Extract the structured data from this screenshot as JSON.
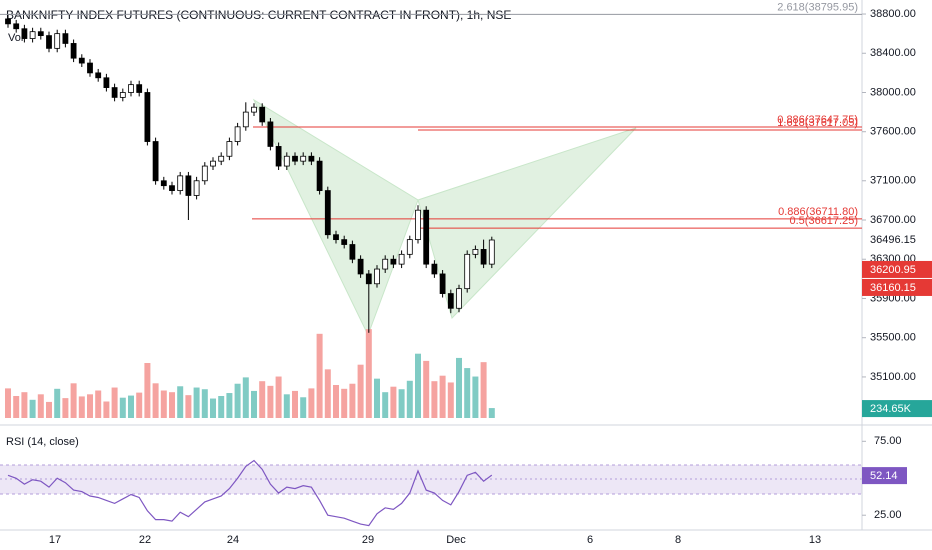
{
  "chart_data": {
    "type": "candlestick",
    "title": "BANKNIFTY INDEX FUTURES (CONTINUOUS: CURRENT CONTRACT IN FRONT), 1h, NSE",
    "volume_title": "Vol",
    "rsi_title": "RSI (14, close)",
    "x_labels": [
      "17",
      "22",
      "24",
      "29",
      "Dec",
      "6",
      "8",
      "13"
    ],
    "ylim": [
      34610,
      38943
    ],
    "yticks": [
      {
        "value": 38800,
        "label": "38800.00"
      },
      {
        "value": 38400,
        "label": "38400.00"
      },
      {
        "value": 38000,
        "label": "38000.00"
      },
      {
        "value": 37600,
        "label": "37600.00"
      },
      {
        "value": 37100,
        "label": "37100.00"
      },
      {
        "value": 36700,
        "label": "36700.00"
      },
      {
        "value": 36300,
        "label": "36300.00"
      },
      {
        "value": 35900,
        "label": "35900.00"
      },
      {
        "value": 35500,
        "label": "35500.00"
      },
      {
        "value": 35100,
        "label": "35100.00"
      }
    ],
    "open": [
      38750,
      38700,
      38650,
      38550,
      38620,
      38580,
      38450,
      38600,
      38500,
      38350,
      38300,
      38200,
      38150,
      38050,
      37950,
      38000,
      38080,
      38000,
      37500,
      37100,
      37050,
      37000,
      37150,
      36950,
      37100,
      37250,
      37300,
      37350,
      37500,
      37650,
      37800,
      37850,
      37700,
      37450,
      37250,
      37350,
      37300,
      37350,
      37300,
      37000,
      36550,
      36500,
      36450,
      36300,
      36150,
      36050,
      36200,
      36300,
      36250,
      36350,
      36500,
      36800,
      36250,
      36150,
      35950,
      35800,
      36000,
      36350,
      36400,
      36250
    ],
    "high": [
      38790,
      38740,
      38690,
      38660,
      38660,
      38620,
      38640,
      38640,
      38540,
      38390,
      38340,
      38240,
      38190,
      38090,
      38040,
      38120,
      38120,
      38040,
      37540,
      37140,
      37090,
      37190,
      37190,
      37140,
      37290,
      37340,
      37390,
      37540,
      37690,
      37900,
      37890,
      37890,
      37740,
      37490,
      37390,
      37390,
      37390,
      37390,
      37340,
      37040,
      36590,
      36540,
      36490,
      36340,
      36190,
      36240,
      36340,
      36340,
      36390,
      36540,
      36850,
      36840,
      36290,
      36190,
      35990,
      36040,
      36390,
      36440,
      36500,
      36530
    ],
    "low": [
      38660,
      38610,
      38510,
      38510,
      38540,
      38410,
      38410,
      38460,
      38310,
      38260,
      38160,
      38110,
      38010,
      37910,
      37910,
      37960,
      37960,
      37460,
      37060,
      37010,
      36960,
      36960,
      36700,
      36910,
      37060,
      37210,
      37260,
      37310,
      37460,
      37610,
      37760,
      37660,
      37410,
      37210,
      37210,
      37260,
      37260,
      37260,
      36960,
      36510,
      36460,
      36410,
      36260,
      36110,
      35550,
      36010,
      36160,
      36210,
      36210,
      36310,
      36460,
      36210,
      36110,
      35910,
      35750,
      35760,
      35960,
      36310,
      36210,
      36210
    ],
    "close": [
      38700,
      38650,
      38550,
      38620,
      38580,
      38450,
      38600,
      38500,
      38350,
      38300,
      38200,
      38150,
      38050,
      37950,
      38000,
      38080,
      38000,
      37500,
      37100,
      37050,
      37000,
      37150,
      36950,
      37100,
      37250,
      37300,
      37350,
      37500,
      37650,
      37800,
      37850,
      37700,
      37450,
      37250,
      37350,
      37300,
      37350,
      37300,
      37000,
      36550,
      36500,
      36450,
      36300,
      36150,
      36050,
      36200,
      36300,
      36250,
      36350,
      36500,
      36800,
      36250,
      36150,
      35950,
      35800,
      36000,
      36350,
      36400,
      36250,
      36496.15
    ],
    "last_price_label": "36496.15",
    "price_boxes": [
      {
        "value": 36200.95,
        "label": "36200.95"
      },
      {
        "value": 36160.15,
        "label": "36160.15"
      }
    ],
    "levels": [
      {
        "label": "2.618(38795.95)",
        "value": 38795.95,
        "color": "#9598a1"
      },
      {
        "label": "0.886(37647.75)",
        "value": 37647.75,
        "color": "#e53935"
      },
      {
        "label": "1.618(37617.05)",
        "value": 37617.05,
        "color": "#e53935"
      },
      {
        "label": "0.886(36711.80)",
        "value": 36711.8,
        "color": "#e53935"
      },
      {
        "label": "0.5(36617.25)",
        "value": 36617.25,
        "color": "#e53935"
      }
    ],
    "volume_lim": [
      0,
      2600
    ],
    "volume": [
      700,
      520,
      610,
      430,
      560,
      380,
      690,
      470,
      820,
      510,
      560,
      650,
      390,
      720,
      480,
      530,
      600,
      1300,
      820,
      650,
      610,
      750,
      540,
      720,
      680,
      460,
      520,
      590,
      810,
      960,
      640,
      870,
      760,
      980,
      560,
      640,
      490,
      700,
      1990,
      1150,
      780,
      690,
      810,
      1260,
      2100,
      930,
      610,
      740,
      680,
      880,
      1520,
      1350,
      870,
      1000,
      840,
      1420,
      1180,
      980,
      1320,
      234.65
    ],
    "volume_label": "234.65K",
    "rsi_ylim": [
      15,
      84
    ],
    "rsi_ticks": [
      {
        "value": 75,
        "label": "75.00"
      },
      {
        "value": 25,
        "label": "25.00"
      }
    ],
    "rsi": [
      52,
      50,
      46,
      49,
      48,
      44,
      50,
      47,
      42,
      41,
      38,
      37,
      35,
      33,
      36,
      39,
      37,
      28,
      22,
      22,
      21,
      27,
      24,
      29,
      34,
      36,
      38,
      43,
      50,
      58,
      62,
      56,
      46,
      40,
      44,
      43,
      45,
      44,
      35,
      25,
      24,
      23,
      21,
      19,
      18,
      26,
      30,
      29,
      33,
      40,
      55,
      42,
      40,
      35,
      32,
      41,
      52,
      54,
      48,
      52.14
    ],
    "rsi_label": "52.14",
    "rsi_color": "#7e57c2",
    "up_color": "#80cbc4",
    "down_color": "#f5a3a0"
  }
}
